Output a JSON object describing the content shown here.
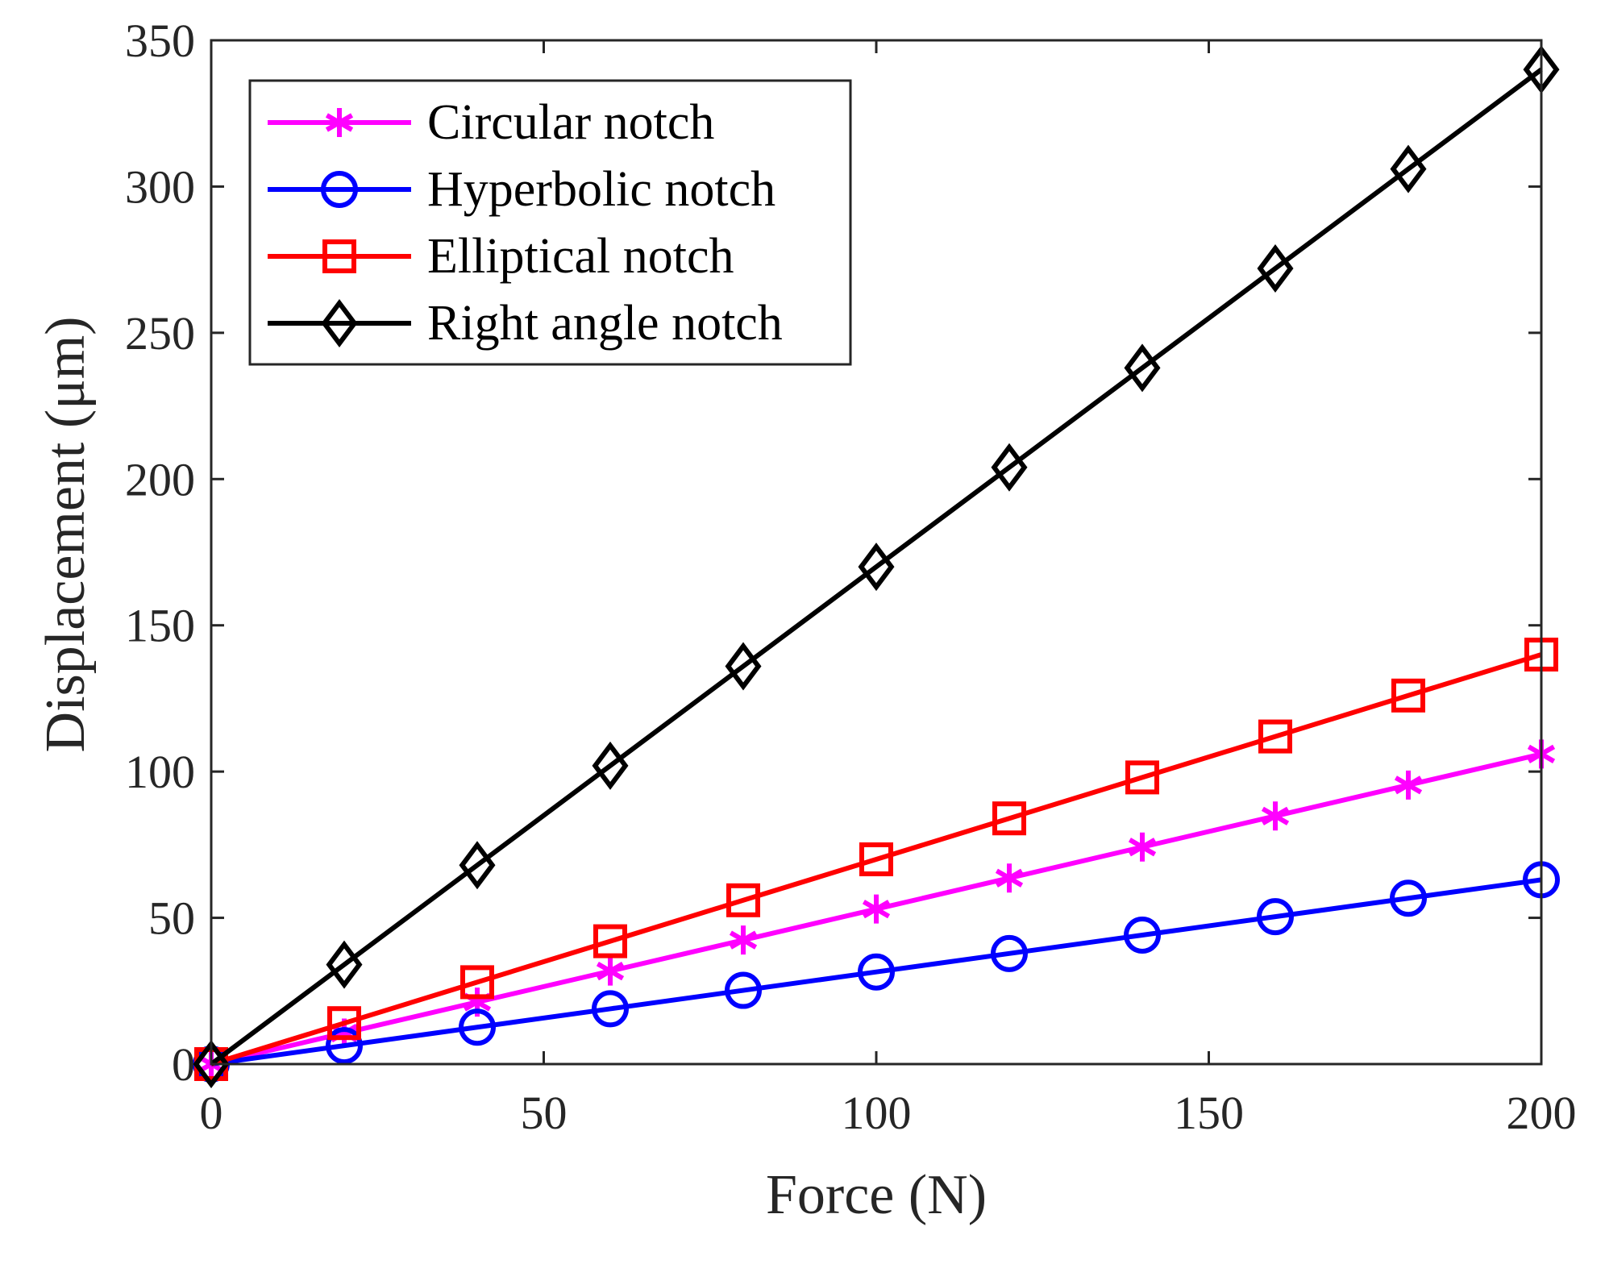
{
  "chart_data": {
    "type": "line",
    "title": "",
    "xlabel": "Force (N)",
    "ylabel": "Displacement (μm)",
    "xlim": [
      0,
      200
    ],
    "ylim": [
      0,
      350
    ],
    "xticks": [
      0,
      50,
      100,
      150,
      200
    ],
    "yticks": [
      0,
      50,
      100,
      150,
      200,
      250,
      300,
      350
    ],
    "grid": false,
    "legend_position": "top-left",
    "x": [
      0,
      20,
      40,
      60,
      80,
      100,
      120,
      140,
      160,
      180,
      200
    ],
    "series": [
      {
        "name": "Circular notch",
        "color": "#ff00ff",
        "marker": "asterisk",
        "values": [
          0,
          10.6,
          21.2,
          31.8,
          42.4,
          53,
          63.6,
          74.2,
          84.8,
          95.4,
          106
        ]
      },
      {
        "name": "Hyperbolic notch",
        "color": "#0000ff",
        "marker": "circle",
        "values": [
          0,
          6.3,
          12.6,
          18.9,
          25.2,
          31.5,
          37.8,
          44.1,
          50.4,
          56.7,
          63
        ]
      },
      {
        "name": "Elliptical notch",
        "color": "#ff0000",
        "marker": "square",
        "values": [
          0,
          14,
          28,
          42,
          56,
          70,
          84,
          98,
          112,
          126,
          140
        ]
      },
      {
        "name": "Right angle notch",
        "color": "#000000",
        "marker": "diamond",
        "values": [
          0,
          34,
          68,
          102,
          136,
          170,
          204,
          238,
          272,
          306,
          340
        ]
      }
    ]
  }
}
